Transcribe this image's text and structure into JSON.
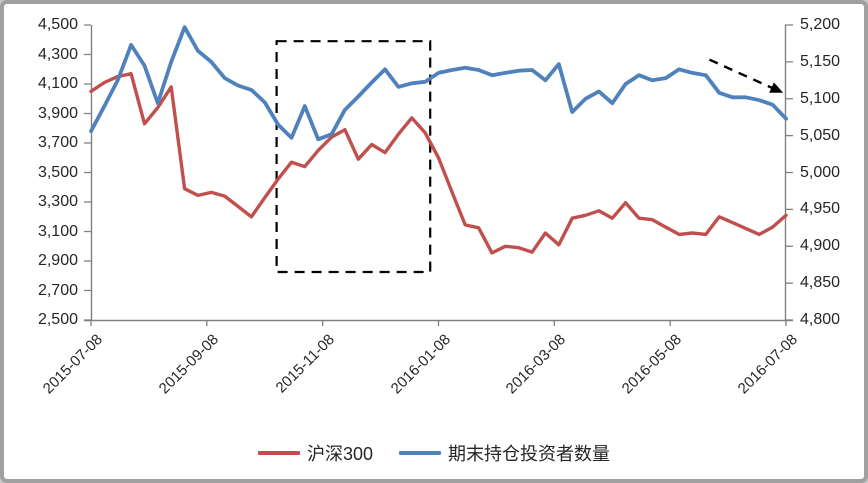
{
  "window": {
    "background": "#ffffff",
    "frame_border_color": "#a0a0a0",
    "axis_line_color": "#808080",
    "text_color": "#262626"
  },
  "chart_data": {
    "type": "line",
    "title": "",
    "x": [
      "2015-07-08",
      "2015-07-15",
      "2015-07-22",
      "2015-07-29",
      "2015-08-05",
      "2015-08-12",
      "2015-08-19",
      "2015-08-26",
      "2015-09-02",
      "2015-09-09",
      "2015-09-16",
      "2015-09-23",
      "2015-09-30",
      "2015-10-07",
      "2015-10-14",
      "2015-10-21",
      "2015-10-28",
      "2015-11-04",
      "2015-11-11",
      "2015-11-18",
      "2015-11-25",
      "2015-12-02",
      "2015-12-09",
      "2015-12-16",
      "2015-12-23",
      "2015-12-30",
      "2016-01-06",
      "2016-01-13",
      "2016-01-20",
      "2016-01-27",
      "2016-02-03",
      "2016-02-10",
      "2016-02-17",
      "2016-02-24",
      "2016-03-02",
      "2016-03-09",
      "2016-03-16",
      "2016-03-23",
      "2016-03-30",
      "2016-04-06",
      "2016-04-13",
      "2016-04-20",
      "2016-04-27",
      "2016-05-04",
      "2016-05-11",
      "2016-05-18",
      "2016-05-25",
      "2016-06-01",
      "2016-06-08",
      "2016-06-15",
      "2016-06-22",
      "2016-06-29",
      "2016-07-06"
    ],
    "x_tick_labels": [
      "2015-07-08",
      "2015-09-08",
      "2015-11-08",
      "2016-01-08",
      "2016-03-08",
      "2016-05-08",
      "2016-07-08"
    ],
    "series": [
      {
        "name": "沪深300",
        "color": "#C0504D",
        "axis": "left",
        "stroke_width": 3.4,
        "values": [
          4050,
          4110,
          4150,
          4170,
          3830,
          3940,
          4080,
          3390,
          3345,
          3365,
          3340,
          3270,
          3200,
          3330,
          3455,
          3570,
          3540,
          3650,
          3740,
          3790,
          3590,
          3690,
          3635,
          3760,
          3870,
          3770,
          3600,
          3370,
          3145,
          3125,
          2955,
          3000,
          2990,
          2960,
          3090,
          3010,
          3190,
          3210,
          3240,
          3190,
          3295,
          3190,
          3180,
          3130,
          3080,
          3090,
          3080,
          3200,
          3160,
          3120,
          3080,
          3130,
          3210
        ]
      },
      {
        "name": "期末持仓投资者数量",
        "color": "#4F81BD",
        "axis": "right",
        "stroke_width": 3.8,
        "values": [
          5056,
          5090,
          5125,
          5173,
          5145,
          5094,
          5150,
          5197,
          5165,
          5150,
          5128,
          5118,
          5112,
          5095,
          5065,
          5047,
          5090,
          5045,
          5052,
          5085,
          5103,
          5122,
          5140,
          5116,
          5121,
          5123,
          5135,
          5139,
          5142,
          5139,
          5132,
          5135,
          5138,
          5139,
          5125,
          5147,
          5082,
          5100,
          5110,
          5094,
          5120,
          5132,
          5125,
          5128,
          5140,
          5135,
          5132,
          5108,
          5102,
          5102,
          5098,
          5092,
          5073
        ]
      }
    ],
    "left_axis": {
      "min": 2500,
      "max": 4500,
      "step": 200,
      "tick_labels": [
        "2,500",
        "2,700",
        "2,900",
        "3,100",
        "3,300",
        "3,500",
        "3,700",
        "3,900",
        "4,100",
        "4,300",
        "4,500"
      ]
    },
    "right_axis": {
      "min": 4800,
      "max": 5200,
      "step": 50,
      "tick_labels": [
        "4,800",
        "4,850",
        "4,900",
        "4,950",
        "5,000",
        "5,050",
        "5,100",
        "5,150",
        "5,200"
      ]
    },
    "grid": false,
    "legend_position": "bottom",
    "annotations": {
      "dashed_box": {
        "axis": "left",
        "x_start_frac": 0.267,
        "x_end_frac": 0.488,
        "top_value": 4390,
        "bottom_value": 2825,
        "stroke": "#000000"
      },
      "dashed_arrow": {
        "axis": "right",
        "x_start_frac": 0.89,
        "y_start_value": 5153,
        "x_end_frac": 0.996,
        "y_end_value": 5108,
        "stroke": "#000000"
      }
    }
  }
}
